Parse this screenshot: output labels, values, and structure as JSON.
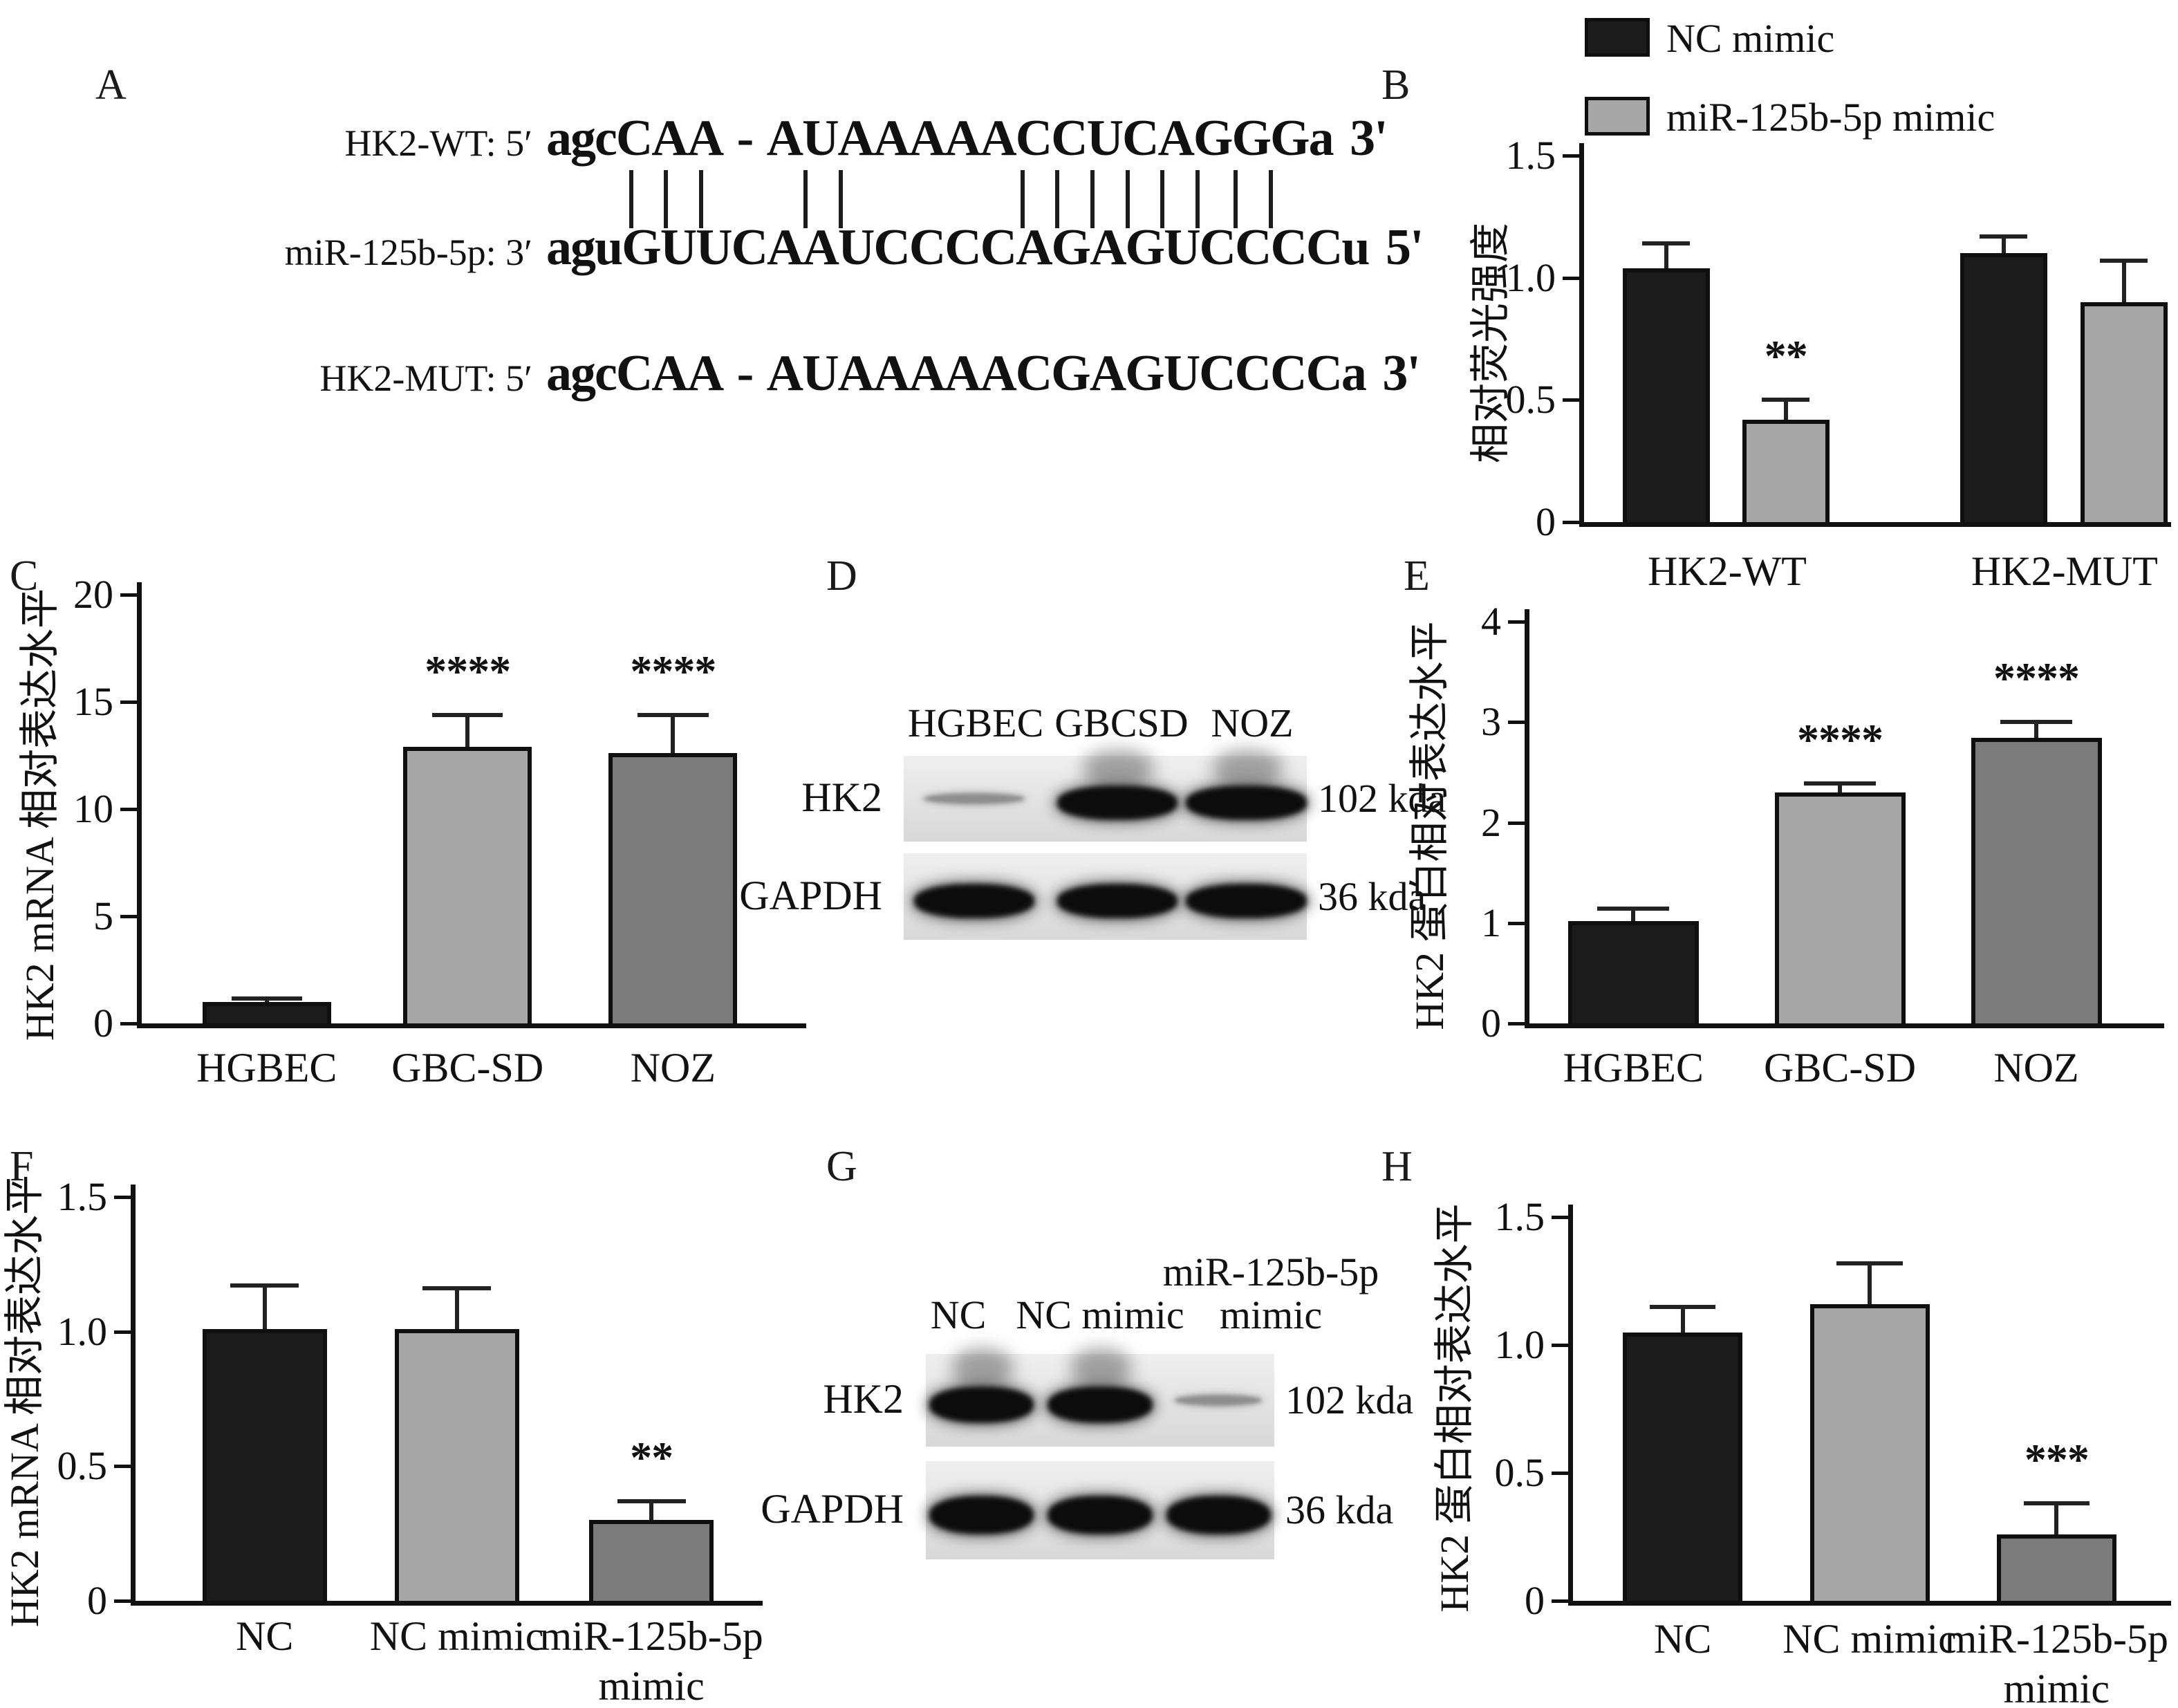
{
  "figure": {
    "background": "#ffffff",
    "axis_color": "#111111",
    "bar_border_color": "#0f0f0f",
    "colors": {
      "black_bar": "#1b1b1b",
      "light_gray_bar": "#a6a6a6",
      "dark_gray_bar": "#7b7b7b"
    }
  },
  "panels": {
    "A": {
      "label": "A"
    },
    "B": {
      "label": "B"
    },
    "C": {
      "label": "C"
    },
    "D": {
      "label": "D"
    },
    "E": {
      "label": "E"
    },
    "F": {
      "label": "F"
    },
    "G": {
      "label": "G"
    },
    "H": {
      "label": "H"
    }
  },
  "alignment": {
    "rows": [
      {
        "label": "HK2-WT: 5′",
        "seq": "agcCAA - AUAAAAACCUCAGGGa 3'"
      },
      {
        "label": "miR-125b-5p: 3′",
        "seq": "aguGUUCAAUCCCCAGAGUCCCCu 5'"
      },
      {
        "label": "HK2-MUT: 5′",
        "seq": "agcCAA - AUAAAAACGAGUCCCCa 3'"
      }
    ],
    "pair_mark_fractions": [
      0.105,
      0.149,
      0.194,
      0.326,
      0.371,
      0.602,
      0.646,
      0.69,
      0.735,
      0.779,
      0.824,
      0.872,
      0.917
    ]
  },
  "chart_data": [
    {
      "id": "B",
      "type": "bar",
      "subtype": "grouped",
      "title": "",
      "ylabel": "相对荧光强度",
      "ylim": [
        0,
        1.5
      ],
      "yticks": [
        "0",
        "0.5",
        "1.0",
        "1.5"
      ],
      "grid": false,
      "legend_position": "top",
      "categories": [
        [
          "HK2-WT"
        ],
        [
          "HK2-MUT"
        ]
      ],
      "series": [
        {
          "name": "NC mimic",
          "color": "#1b1b1b",
          "values": [
            1.04,
            1.1
          ],
          "errors": [
            0.1,
            0.07
          ]
        },
        {
          "name": "miR-125b-5p mimic",
          "color": "#a6a6a6",
          "values": [
            0.42,
            0.9
          ],
          "errors": [
            0.08,
            0.17
          ]
        }
      ],
      "significance": [
        {
          "series": 1,
          "category": 0,
          "label": "**"
        }
      ]
    },
    {
      "id": "C",
      "type": "bar",
      "subtype": "simple",
      "title": "",
      "ylabel": "HK2 mRNA 相对表达水平",
      "ylim": [
        0,
        20
      ],
      "yticks": [
        "0",
        "5",
        "10",
        "15",
        "20"
      ],
      "grid": false,
      "categories": [
        [
          "HGBEC"
        ],
        [
          "GBC-SD"
        ],
        [
          "NOZ"
        ]
      ],
      "values": [
        1.0,
        12.9,
        12.6
      ],
      "errors": [
        0.15,
        1.5,
        1.8
      ],
      "colors": [
        "#1b1b1b",
        "#a6a6a6",
        "#7b7b7b"
      ],
      "significance": [
        "",
        "****",
        "****"
      ]
    },
    {
      "id": "E",
      "type": "bar",
      "subtype": "simple",
      "title": "",
      "ylabel": "HK2 蛋白相对表达水平",
      "ylim": [
        0,
        4
      ],
      "yticks": [
        "0",
        "1",
        "2",
        "3",
        "4"
      ],
      "grid": false,
      "categories": [
        [
          "HGBEC"
        ],
        [
          "GBC-SD"
        ],
        [
          "NOZ"
        ]
      ],
      "values": [
        1.02,
        2.3,
        2.84
      ],
      "errors": [
        0.12,
        0.09,
        0.16
      ],
      "colors": [
        "#1b1b1b",
        "#a6a6a6",
        "#7b7b7b"
      ],
      "significance": [
        "",
        "****",
        "****"
      ]
    },
    {
      "id": "F",
      "type": "bar",
      "subtype": "simple",
      "title": "",
      "ylabel": "HK2 mRNA 相对表达水平",
      "ylim": [
        0,
        1.5
      ],
      "yticks": [
        "0",
        "0.5",
        "1.0",
        "1.5"
      ],
      "grid": false,
      "categories": [
        [
          "NC"
        ],
        [
          "NC mimic"
        ],
        [
          "miR-125b-5p",
          "mimic"
        ]
      ],
      "values": [
        1.01,
        1.01,
        0.3
      ],
      "errors": [
        0.16,
        0.15,
        0.07
      ],
      "colors": [
        "#1b1b1b",
        "#a6a6a6",
        "#7b7b7b"
      ],
      "significance": [
        "",
        "",
        "**"
      ]
    },
    {
      "id": "H",
      "type": "bar",
      "subtype": "simple",
      "title": "",
      "ylabel": "HK2 蛋白相对表达水平",
      "ylim": [
        0,
        1.5
      ],
      "yticks": [
        "0",
        "0.5",
        "1.0",
        "1.5"
      ],
      "grid": false,
      "categories": [
        [
          "NC"
        ],
        [
          "NC mimic"
        ],
        [
          "miR-125b-5p",
          "mimic"
        ]
      ],
      "values": [
        1.05,
        1.16,
        0.26
      ],
      "errors": [
        0.1,
        0.16,
        0.12
      ],
      "colors": [
        "#1b1b1b",
        "#a6a6a6",
        "#7b7b7b"
      ],
      "significance": [
        "",
        "",
        "***"
      ]
    }
  ],
  "blots": [
    {
      "id": "D",
      "lane_labels": [
        [
          "HGBEC"
        ],
        [
          "GBCSD"
        ],
        [
          "NOZ"
        ]
      ],
      "rows": [
        {
          "protein": "HK2",
          "size": "102 kda",
          "bands": [
            "faint",
            "strong",
            "strong"
          ]
        },
        {
          "protein": "GAPDH",
          "size": "36 kda",
          "bands": [
            "strong",
            "strong",
            "strong"
          ]
        }
      ]
    },
    {
      "id": "G",
      "lane_labels": [
        [
          "NC"
        ],
        [
          "NC mimic"
        ],
        [
          "miR-125b-5p",
          "mimic"
        ]
      ],
      "rows": [
        {
          "protein": "HK2",
          "size": "102 kda",
          "bands": [
            "strong",
            "strong",
            "faint"
          ]
        },
        {
          "protein": "GAPDH",
          "size": "36 kda",
          "bands": [
            "strong",
            "strong",
            "strong"
          ]
        }
      ]
    }
  ]
}
